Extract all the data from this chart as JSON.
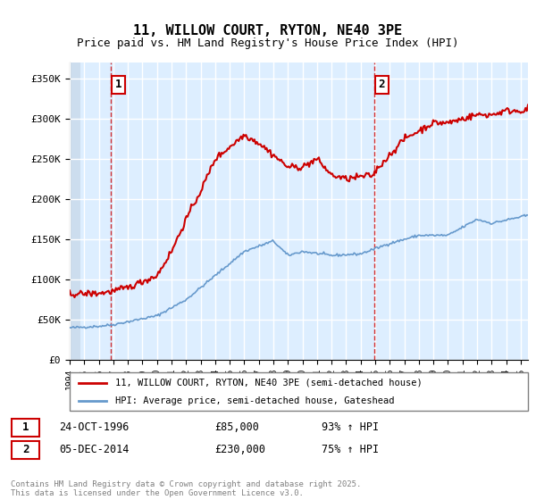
{
  "title": "11, WILLOW COURT, RYTON, NE40 3PE",
  "subtitle": "Price paid vs. HM Land Registry's House Price Index (HPI)",
  "ylim": [
    0,
    370000
  ],
  "yticks": [
    0,
    50000,
    100000,
    150000,
    200000,
    250000,
    300000,
    350000
  ],
  "ytick_labels": [
    "£0",
    "£50K",
    "£100K",
    "£150K",
    "£200K",
    "£250K",
    "£300K",
    "£350K"
  ],
  "sale1": {
    "date_num": 1996.82,
    "price": 85000,
    "label": "1",
    "date_str": "24-OCT-1996",
    "pct": "93% ↑ HPI"
  },
  "sale2": {
    "date_num": 2014.92,
    "price": 230000,
    "label": "2",
    "date_str": "05-DEC-2014",
    "pct": "75% ↑ HPI"
  },
  "red_line_color": "#cc0000",
  "blue_line_color": "#6699cc",
  "background_color": "#ddeeff",
  "grid_color": "#ffffff",
  "legend_label_red": "11, WILLOW COURT, RYTON, NE40 3PE (semi-detached house)",
  "legend_label_blue": "HPI: Average price, semi-detached house, Gateshead",
  "footer": "Contains HM Land Registry data © Crown copyright and database right 2025.\nThis data is licensed under the Open Government Licence v3.0.",
  "xmin": 1994.0,
  "xmax": 2025.5,
  "hpi_t": [
    1994,
    1996,
    1997,
    2000,
    2002,
    2004,
    2006,
    2008,
    2009,
    2010,
    2012,
    2014,
    2016,
    2018,
    2020,
    2022,
    2023,
    2025.5
  ],
  "hpi_v": [
    40000,
    42000,
    44000,
    55000,
    75000,
    105000,
    135000,
    148000,
    130000,
    135000,
    130000,
    132000,
    145000,
    155000,
    155000,
    175000,
    170000,
    180000
  ],
  "red_t": [
    1994,
    1996,
    1996.82,
    1998,
    2000,
    2001,
    2002,
    2003,
    2004,
    2005,
    2006,
    2007,
    2008,
    2009,
    2010,
    2011,
    2012,
    2013,
    2014,
    2014.92,
    2015,
    2016,
    2017,
    2018,
    2019,
    2020,
    2021,
    2022,
    2023,
    2024,
    2025,
    2025.5
  ],
  "red_v": [
    82000,
    83000,
    85000,
    90000,
    105000,
    135000,
    175000,
    210000,
    250000,
    265000,
    280000,
    270000,
    255000,
    240000,
    240000,
    250000,
    230000,
    225000,
    228000,
    230000,
    235000,
    255000,
    275000,
    285000,
    295000,
    295000,
    300000,
    305000,
    305000,
    310000,
    310000,
    312000
  ]
}
